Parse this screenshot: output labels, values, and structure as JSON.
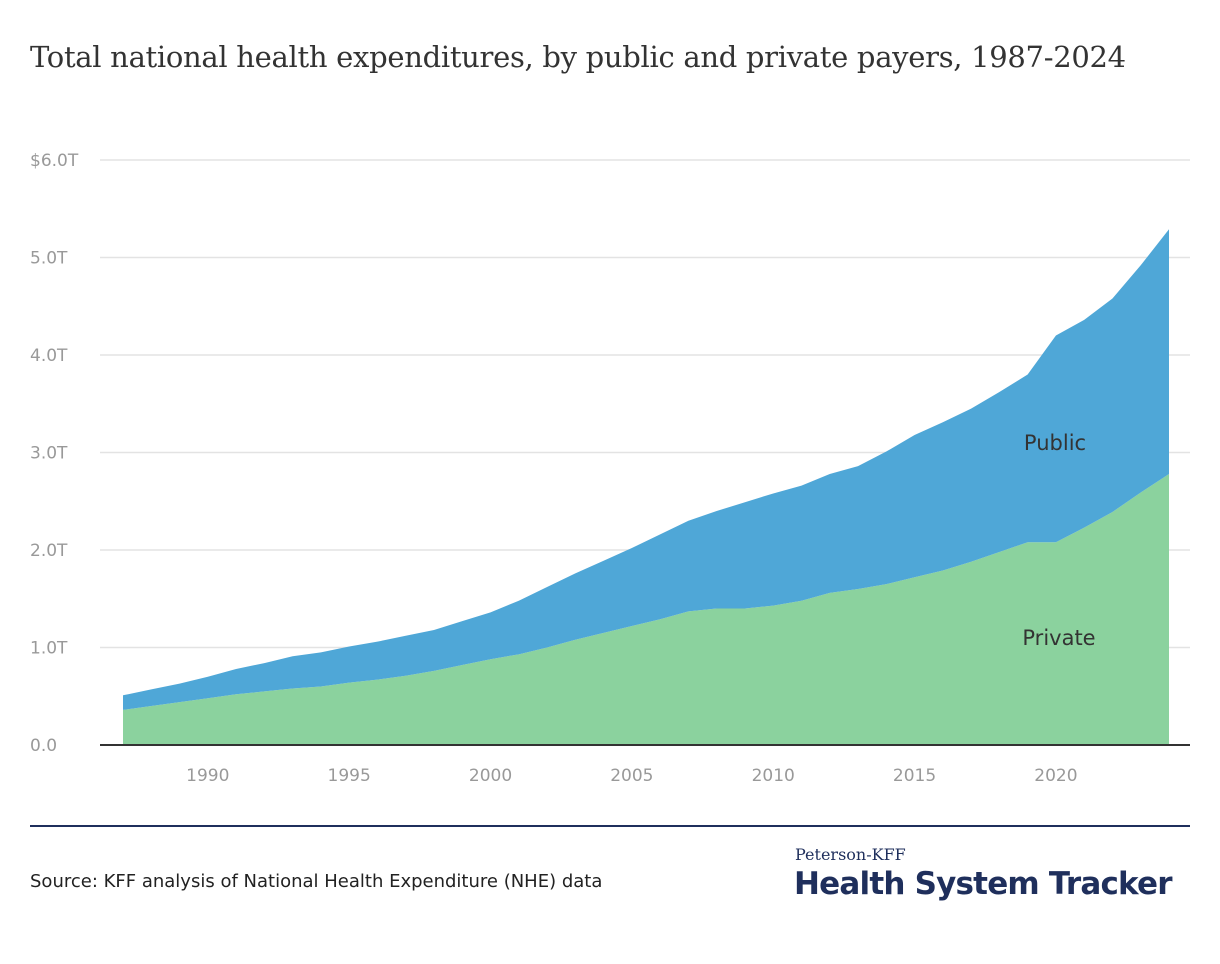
{
  "chart_data": {
    "type": "area",
    "stacked": true,
    "title": "Total national health expenditures, by public and private payers, 1987-2024",
    "xlabel": "",
    "ylabel": "",
    "x": [
      1987,
      1988,
      1989,
      1990,
      1991,
      1992,
      1993,
      1994,
      1995,
      1996,
      1997,
      1998,
      1999,
      2000,
      2001,
      2002,
      2003,
      2004,
      2005,
      2006,
      2007,
      2008,
      2009,
      2010,
      2011,
      2012,
      2013,
      2014,
      2015,
      2016,
      2017,
      2018,
      2019,
      2020,
      2021,
      2022,
      2023,
      2024
    ],
    "series": [
      {
        "name": "Private",
        "color": "#8bd29e",
        "values": [
          0.36,
          0.4,
          0.44,
          0.48,
          0.52,
          0.55,
          0.58,
          0.6,
          0.64,
          0.67,
          0.71,
          0.76,
          0.82,
          0.88,
          0.93,
          1.0,
          1.08,
          1.15,
          1.22,
          1.29,
          1.37,
          1.4,
          1.4,
          1.43,
          1.48,
          1.56,
          1.6,
          1.65,
          1.72,
          1.79,
          1.88,
          1.98,
          2.08,
          2.08,
          2.23,
          2.39,
          2.59,
          2.78
        ]
      },
      {
        "name": "Public",
        "color": "#4fa7d7",
        "values": [
          0.15,
          0.17,
          0.19,
          0.22,
          0.26,
          0.29,
          0.33,
          0.35,
          0.37,
          0.39,
          0.41,
          0.42,
          0.45,
          0.48,
          0.55,
          0.62,
          0.68,
          0.74,
          0.8,
          0.87,
          0.93,
          1.0,
          1.09,
          1.15,
          1.18,
          1.22,
          1.26,
          1.36,
          1.46,
          1.52,
          1.57,
          1.64,
          1.72,
          2.12,
          2.13,
          2.19,
          2.33,
          2.51
        ]
      }
    ],
    "ylim": [
      0,
      6
    ],
    "xlim": [
      1987,
      2024
    ],
    "y_ticks": [
      {
        "v": 0,
        "label": "0.0"
      },
      {
        "v": 1,
        "label": "1.0T"
      },
      {
        "v": 2,
        "label": "2.0T"
      },
      {
        "v": 3,
        "label": "3.0T"
      },
      {
        "v": 4,
        "label": "4.0T"
      },
      {
        "v": 5,
        "label": "5.0T"
      },
      {
        "v": 6,
        "label": "$6.0T"
      }
    ],
    "x_ticks": [
      {
        "v": 1990,
        "label": "1990"
      },
      {
        "v": 1995,
        "label": "1995"
      },
      {
        "v": 2000,
        "label": "2000"
      },
      {
        "v": 2005,
        "label": "2005"
      },
      {
        "v": 2010,
        "label": "2010"
      },
      {
        "v": 2015,
        "label": "2015"
      },
      {
        "v": 2020,
        "label": "2020"
      }
    ],
    "grid": true,
    "legend": "inline labels"
  },
  "footer": {
    "source": "Source: KFF analysis of National Health Expenditure (NHE) data",
    "logo_top": "Peterson-KFF",
    "logo_main": "Health System Tracker"
  }
}
